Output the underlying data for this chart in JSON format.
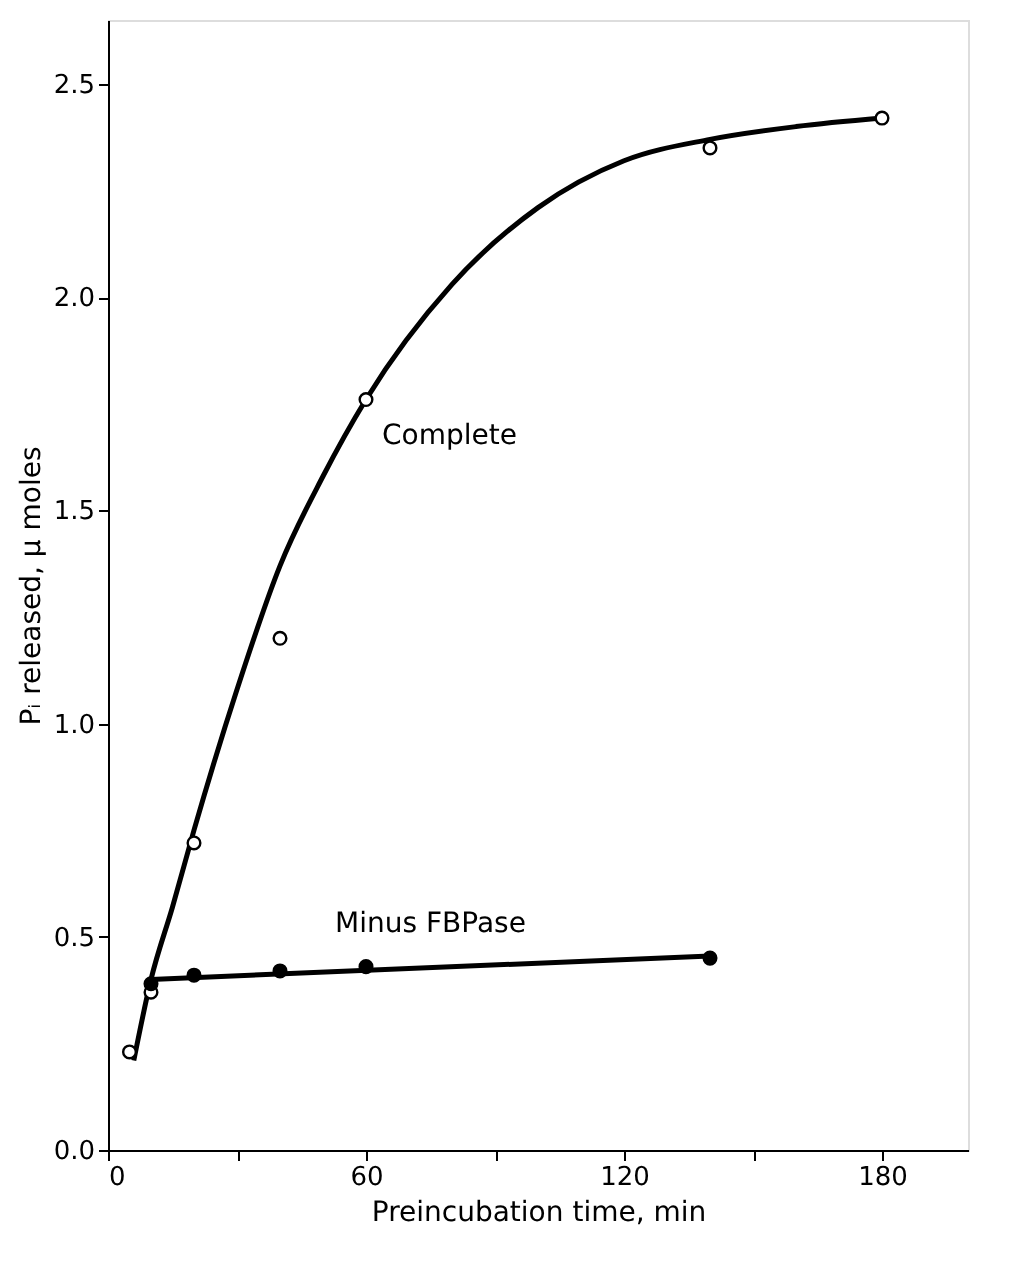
{
  "chart_data": {
    "type": "line",
    "xlabel": "Preincubation time, min",
    "ylabel": "Pᵢ released, μ moles",
    "xlim": [
      0,
      200
    ],
    "ylim": [
      0,
      2.65
    ],
    "xticks": [
      0,
      {
        "value": 30,
        "label": null
      },
      60,
      {
        "value": 90,
        "label": null
      },
      120,
      {
        "value": 150,
        "label": null
      },
      180
    ],
    "yticks": [
      "0.0",
      0.5,
      "1.0",
      1.5,
      "2.0",
      2.5
    ],
    "grid": false,
    "series": [
      {
        "name": "Complete",
        "color": "#000000",
        "marker": "none",
        "x": [
          6,
          10,
          15,
          20,
          30,
          40,
          50,
          60,
          80,
          100,
          120,
          140,
          160,
          180
        ],
        "values": [
          0.21,
          0.4,
          0.57,
          0.75,
          1.08,
          1.37,
          1.58,
          1.76,
          2.03,
          2.21,
          2.32,
          2.37,
          2.4,
          2.42
        ]
      },
      {
        "type": "scatter",
        "color": "#ffffff",
        "marker": "circle",
        "x": [
          5,
          10,
          20,
          40,
          60,
          140,
          180
        ],
        "values": [
          0.23,
          0.37,
          0.72,
          1.2,
          1.76,
          2.35,
          2.42
        ]
      },
      {
        "name": "Minus FBPase",
        "color": "#000000",
        "marker": "none",
        "x": [
          10,
          140
        ],
        "values": [
          0.4,
          0.455
        ]
      },
      {
        "type": "scatter",
        "color": "#000000",
        "marker": "circle",
        "x": [
          10,
          20,
          40,
          60,
          140
        ],
        "values": [
          0.39,
          0.41,
          0.42,
          0.43,
          0.45
        ]
      }
    ]
  }
}
